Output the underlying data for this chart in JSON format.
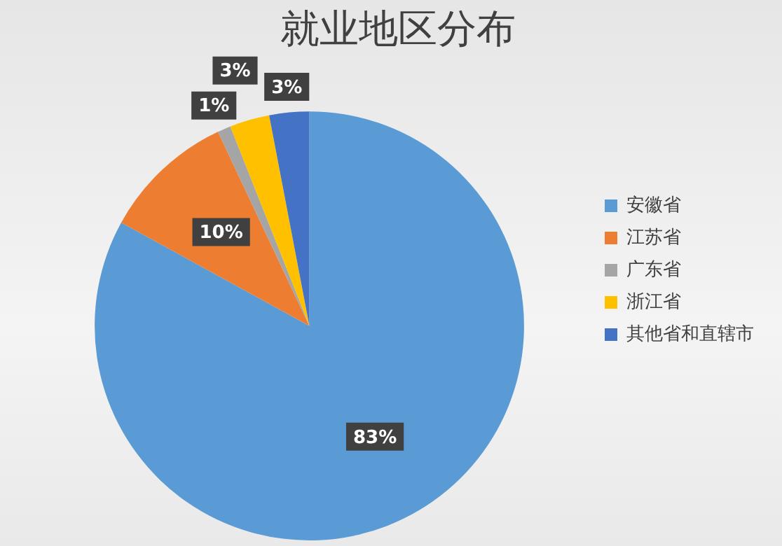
{
  "chart_data": {
    "type": "pie",
    "title": "就业地区分布",
    "categories": [
      "安徽省",
      "江苏省",
      "广东省",
      "浙江省",
      "其他省和直辖市"
    ],
    "values": [
      83,
      10,
      1,
      3,
      3
    ],
    "colors": [
      "#5b9bd5",
      "#ed7d31",
      "#a5a5a5",
      "#ffc000",
      "#4472c4"
    ],
    "value_labels": [
      "83%",
      "10%",
      "1%",
      "3%",
      "3%"
    ],
    "legend": "right"
  }
}
